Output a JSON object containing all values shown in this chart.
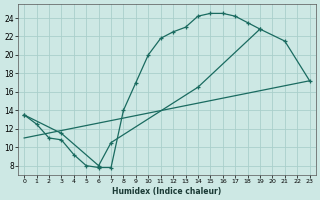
{
  "bg_color": "#cde8e4",
  "grid_color": "#aacfcb",
  "line_color": "#1a6b60",
  "xlabel": "Humidex (Indice chaleur)",
  "xlim": [
    -0.5,
    23.5
  ],
  "ylim": [
    7.0,
    25.5
  ],
  "yticks": [
    8,
    10,
    12,
    14,
    16,
    18,
    20,
    22,
    24
  ],
  "xticks": [
    0,
    1,
    2,
    3,
    4,
    5,
    6,
    7,
    8,
    9,
    10,
    11,
    12,
    13,
    14,
    15,
    16,
    17,
    18,
    19,
    20,
    21,
    22,
    23
  ],
  "curve1_x": [
    0,
    1,
    2,
    3,
    4,
    5,
    6,
    7,
    8,
    9,
    10,
    11,
    12,
    13,
    14,
    15,
    16,
    17,
    18,
    19
  ],
  "curve1_y": [
    13.5,
    12.5,
    11.0,
    10.8,
    9.2,
    8.0,
    7.8,
    7.8,
    14.0,
    17.0,
    20.0,
    21.8,
    22.5,
    23.0,
    24.2,
    24.5,
    24.5,
    24.2,
    23.5,
    22.8
  ],
  "curve2_x": [
    0,
    3,
    6,
    7,
    14,
    19,
    21,
    23
  ],
  "curve2_y": [
    13.5,
    11.5,
    8.0,
    10.5,
    16.5,
    22.8,
    21.5,
    17.2
  ],
  "curve3_x": [
    0,
    23
  ],
  "curve3_y": [
    11.0,
    17.2
  ]
}
